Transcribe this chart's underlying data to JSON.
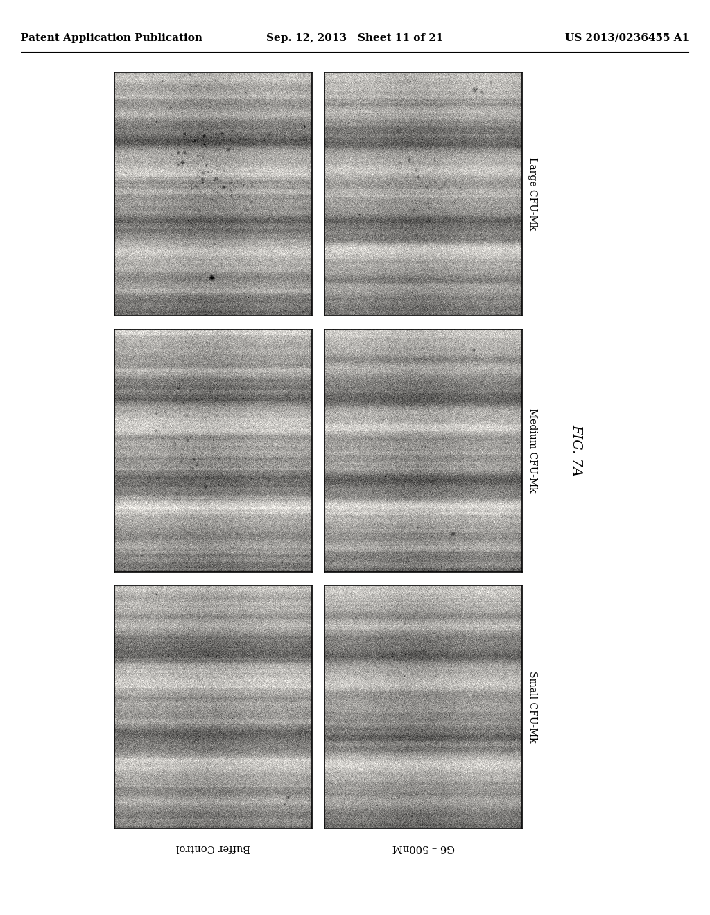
{
  "header_left": "Patent Application Publication",
  "header_center": "Sep. 12, 2013   Sheet 11 of 21",
  "header_right": "US 2013/0236455 A1",
  "figure_label": "FIG. 7A",
  "row_labels": [
    "Large CFU-Mk",
    "Medium CFU-Mk",
    "Small CFU-Mk"
  ],
  "col_labels_bottom": [
    "Buffer Control",
    "G6 – 500nM"
  ],
  "background_color": "#ffffff",
  "header_fontsize": 11,
  "label_fontsize": 10,
  "fig_label_fontsize": 14
}
